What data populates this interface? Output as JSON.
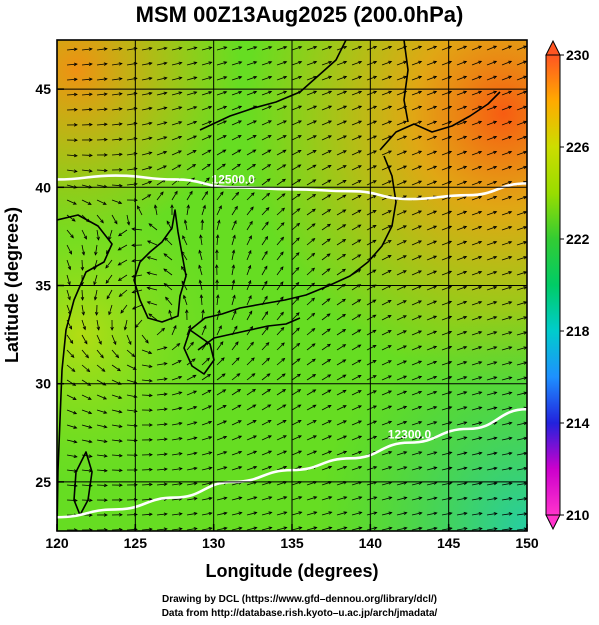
{
  "title": "MSM 00Z13Aug2025 (200.0hPa)",
  "xaxis": {
    "label": "Longitude (degrees)",
    "range": [
      120,
      150
    ],
    "ticks": [
      120,
      125,
      130,
      135,
      140,
      145,
      150
    ],
    "tick_labels": [
      "120",
      "125",
      "130",
      "135",
      "140",
      "145",
      "150"
    ]
  },
  "yaxis": {
    "label": "Latitude  (degrees)",
    "range": [
      22.5,
      47.5
    ],
    "ticks": [
      25,
      30,
      35,
      40,
      45
    ],
    "tick_labels": [
      "25",
      "30",
      "35",
      "40",
      "45"
    ]
  },
  "colorbar": {
    "min": 210,
    "max": 230,
    "tick_labels": [
      "210",
      "214",
      "218",
      "222",
      "226",
      "230"
    ],
    "stops": [
      "#ff33cc",
      "#cc00cc",
      "#2222dd",
      "#1e90ff",
      "#00cccc",
      "#00cc66",
      "#33cc33",
      "#99dd00",
      "#ccdd00",
      "#ffaa00",
      "#ff5522"
    ]
  },
  "contours": [
    {
      "label": "12500.0",
      "lats": [
        40.4,
        40.6,
        40.4,
        40.0,
        39.9,
        39.8,
        39.4,
        39.6,
        40.2
      ]
    },
    {
      "label": "12300.0",
      "lats": [
        23.2,
        23.6,
        24.2,
        25.0,
        25.6,
        26.2,
        27.0,
        27.7,
        28.7
      ]
    }
  ],
  "footer": {
    "line1": "Drawing by DCL (https://www.gfd–dennou.org/library/dcl/)",
    "line2": "Data from http://database.rish.kyoto–u.ac.jp/arch/jmadata/"
  }
}
